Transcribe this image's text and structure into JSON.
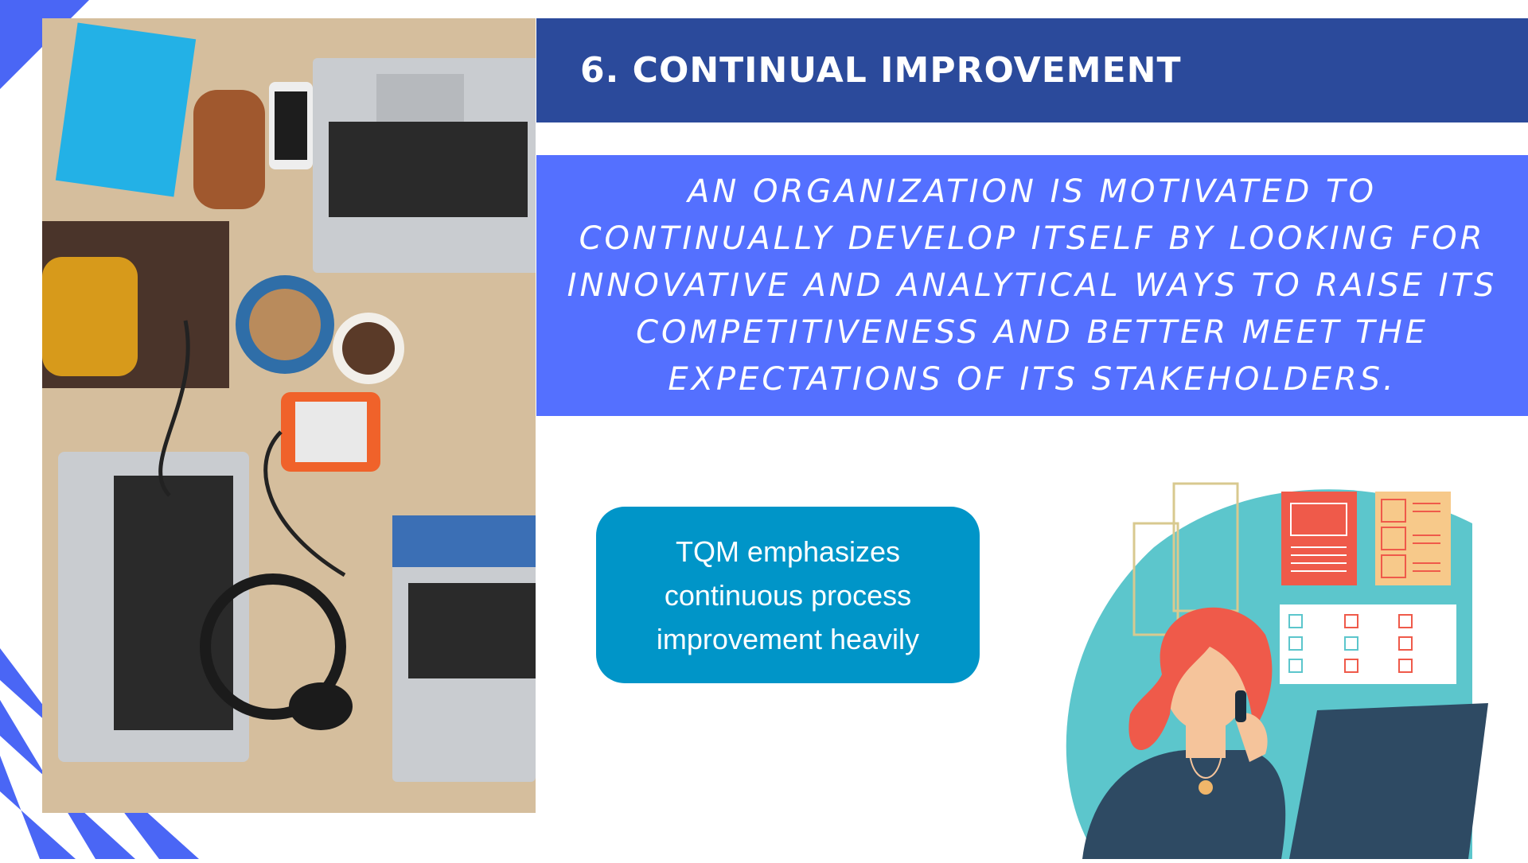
{
  "slide": {
    "title": "6. CONTINUAL IMPROVEMENT",
    "description": "AN ORGANIZATION IS MOTIVATED TO CONTINUALLY DEVELOP ITSELF BY LOOKING FOR INNOVATIVE AND ANALYTICAL WAYS TO RAISE ITS COMPETITIVENESS AND BETTER MEET THE EXPECTATIONS OF ITS STAKEHOLDERS.",
    "callout": "TQM emphasizes continuous process improvement heavily"
  },
  "colors": {
    "title_banner": "#2b4a9b",
    "quote_box": "#5470ff",
    "callout": "#0095c8",
    "accent_stripes": "#4a66f5",
    "illustration_blob": "#5cc6cc",
    "illustration_hair": "#ef5a4a"
  },
  "images": {
    "photo": "desk-with-laptops-photo",
    "illustration": "woman-on-phone-at-computer-illustration"
  }
}
